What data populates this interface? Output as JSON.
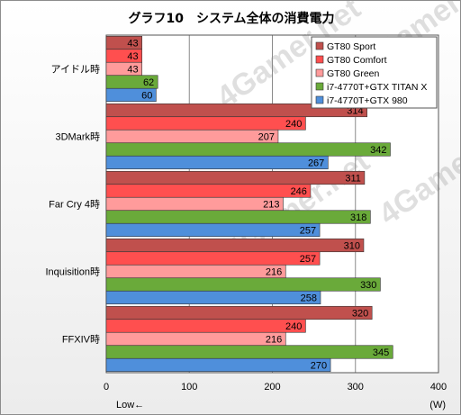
{
  "chart_data": {
    "type": "bar",
    "orientation": "horizontal",
    "title": "グラフ10　システム全体の消費電力",
    "categories": [
      "アイドル時",
      "3DMark時",
      "Far Cry 4時",
      "Inquisition時",
      "FFXIV時"
    ],
    "series": [
      {
        "name": "GT80 Sport",
        "color": "#c0504d",
        "values": [
          43,
          314,
          311,
          310,
          320
        ]
      },
      {
        "name": "GT80 Comfort",
        "color": "#ff4f4f",
        "values": [
          43,
          240,
          246,
          257,
          240
        ]
      },
      {
        "name": "GT80 Green",
        "color": "#ff9b9b",
        "values": [
          43,
          207,
          213,
          216,
          216
        ]
      },
      {
        "name": "i7-4770T+GTX TITAN X",
        "color": "#6aaa3a",
        "values": [
          62,
          342,
          318,
          330,
          345
        ]
      },
      {
        "name": "i7-4770T+GTX 980",
        "color": "#4f8fdb",
        "values": [
          60,
          267,
          257,
          258,
          270
        ]
      }
    ],
    "xlim": [
      0,
      400
    ],
    "xticks": [
      0,
      100,
      200,
      300,
      400
    ],
    "xunit": "(W)",
    "xnote": "Low←",
    "grid": true,
    "legend_position": "top-right",
    "watermark": "4Gamer.net"
  }
}
